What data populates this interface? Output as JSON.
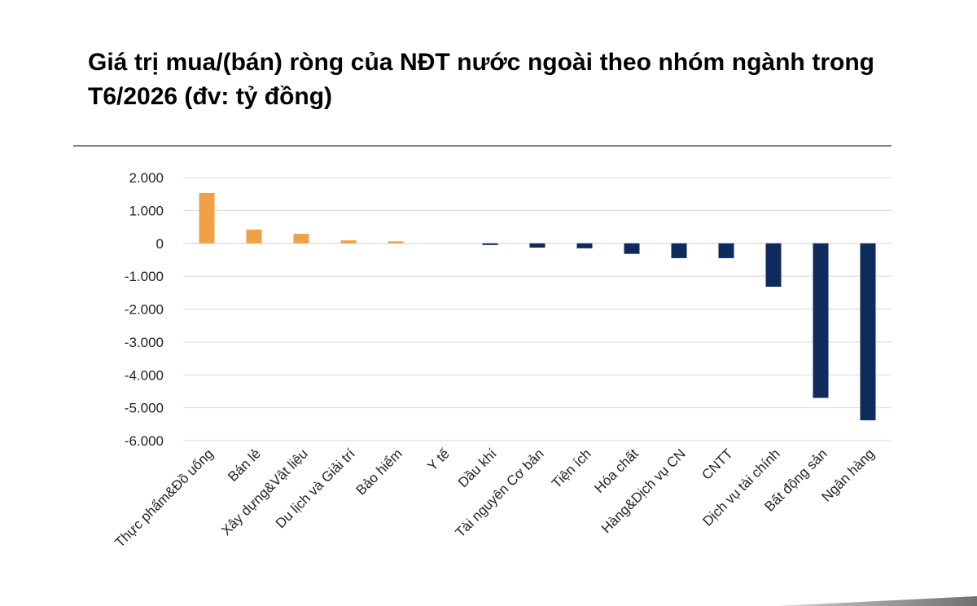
{
  "chart_data": {
    "type": "bar",
    "title": "Giá trị mua/(bán) ròng của NĐT nước ngoài theo nhóm ngành trong T6/2026 (đv: tỷ đồng)",
    "categories": [
      "Thực phẩm&Đồ uống",
      "Bán lẻ",
      "Xây dựng&Vật liệu",
      "Du lịch và Giải trí",
      "Bảo hiểm",
      "Y tế",
      "Dầu khí",
      "Tài nguyên Cơ bản",
      "Tiện ích",
      "Hóa chất",
      "Hàng&Dịch vụ CN",
      "CNTT",
      "Dịch vụ tài chính",
      "Bất động sản",
      "Ngân hàng"
    ],
    "values": [
      1530,
      420,
      290,
      90,
      60,
      0,
      -50,
      -130,
      -150,
      -320,
      -450,
      -450,
      -1320,
      -4700,
      -5380
    ],
    "ylim": [
      -6000,
      2000
    ],
    "yticks": [
      2000,
      1000,
      0,
      -1000,
      -2000,
      -3000,
      -4000,
      -5000,
      -6000
    ],
    "ytick_labels": [
      "2.000",
      "1.000",
      "0",
      "-1.000",
      "-2.000",
      "-3.000",
      "-4.000",
      "-5.000",
      "-6.000"
    ],
    "grid": true,
    "colors": {
      "positive": "#f0a045",
      "negative": "#0f2a5c"
    },
    "xlabel": "",
    "ylabel": ""
  }
}
